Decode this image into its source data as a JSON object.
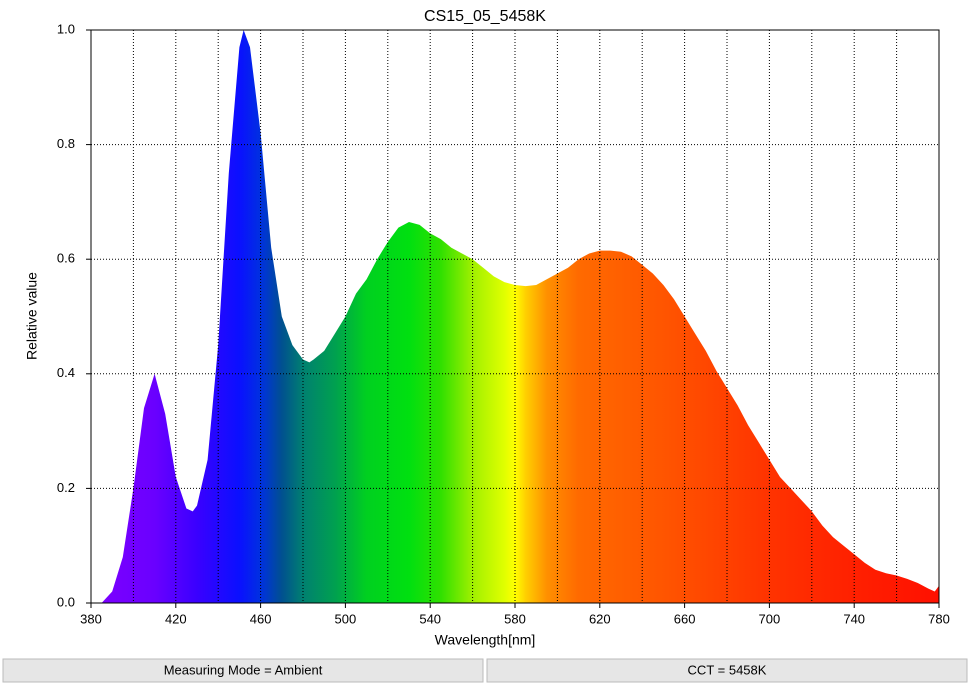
{
  "chart_data": {
    "type": "area",
    "title": "CS15_05_5458K",
    "x_label": "Wavelength[nm]",
    "y_label": "Relative value",
    "x": [
      380,
      385,
      390,
      395,
      400,
      405,
      410,
      415,
      420,
      425,
      428,
      430,
      435,
      440,
      445,
      450,
      452,
      455,
      460,
      465,
      470,
      475,
      480,
      483,
      485,
      490,
      495,
      500,
      505,
      510,
      515,
      520,
      525,
      530,
      535,
      540,
      545,
      550,
      555,
      560,
      565,
      570,
      575,
      580,
      585,
      590,
      595,
      600,
      605,
      610,
      615,
      620,
      625,
      630,
      635,
      640,
      645,
      650,
      655,
      660,
      665,
      670,
      675,
      680,
      685,
      690,
      695,
      700,
      705,
      710,
      715,
      720,
      725,
      730,
      735,
      740,
      745,
      750,
      755,
      760,
      765,
      770,
      775,
      778,
      780
    ],
    "values": [
      0,
      0,
      0.02,
      0.08,
      0.2,
      0.34,
      0.4,
      0.33,
      0.22,
      0.165,
      0.16,
      0.17,
      0.25,
      0.45,
      0.75,
      0.97,
      1.0,
      0.97,
      0.82,
      0.62,
      0.5,
      0.45,
      0.425,
      0.42,
      0.425,
      0.44,
      0.47,
      0.5,
      0.54,
      0.565,
      0.6,
      0.63,
      0.655,
      0.665,
      0.66,
      0.645,
      0.635,
      0.62,
      0.61,
      0.6,
      0.585,
      0.57,
      0.56,
      0.555,
      0.553,
      0.555,
      0.565,
      0.575,
      0.585,
      0.6,
      0.61,
      0.615,
      0.615,
      0.613,
      0.605,
      0.59,
      0.575,
      0.555,
      0.53,
      0.5,
      0.47,
      0.44,
      0.405,
      0.375,
      0.345,
      0.31,
      0.28,
      0.25,
      0.22,
      0.2,
      0.18,
      0.16,
      0.135,
      0.115,
      0.1,
      0.085,
      0.07,
      0.058,
      0.052,
      0.048,
      0.042,
      0.035,
      0.025,
      0.02,
      0.03
    ],
    "gradient": [
      {
        "x": 380,
        "color": "#7f00ff"
      },
      {
        "x": 410,
        "color": "#6a00ff"
      },
      {
        "x": 430,
        "color": "#3a00ff"
      },
      {
        "x": 450,
        "color": "#0a10ff"
      },
      {
        "x": 460,
        "color": "#0030e0"
      },
      {
        "x": 470,
        "color": "#005090"
      },
      {
        "x": 480,
        "color": "#008070"
      },
      {
        "x": 495,
        "color": "#00a050"
      },
      {
        "x": 510,
        "color": "#00d020"
      },
      {
        "x": 530,
        "color": "#00e010"
      },
      {
        "x": 545,
        "color": "#30e000"
      },
      {
        "x": 560,
        "color": "#a0f000"
      },
      {
        "x": 575,
        "color": "#e0ff00"
      },
      {
        "x": 580,
        "color": "#ffff00"
      },
      {
        "x": 585,
        "color": "#ffd000"
      },
      {
        "x": 595,
        "color": "#ff9000"
      },
      {
        "x": 610,
        "color": "#ff6a00"
      },
      {
        "x": 650,
        "color": "#ff5500"
      },
      {
        "x": 700,
        "color": "#ff3300"
      },
      {
        "x": 740,
        "color": "#ff2000"
      },
      {
        "x": 780,
        "color": "#ff1000"
      }
    ],
    "xlim": [
      380,
      780
    ],
    "xticks": [
      380,
      420,
      460,
      500,
      540,
      580,
      620,
      660,
      700,
      740,
      780
    ],
    "xminorgrid": [
      400,
      440,
      480,
      520,
      560,
      600,
      640,
      680,
      720,
      760
    ],
    "ylim": [
      0,
      1
    ],
    "yticks": [
      {
        "value": 0,
        "label": "0.0"
      },
      {
        "value": 0.2,
        "label": "0.2"
      },
      {
        "value": 0.4,
        "label": "0.4"
      },
      {
        "value": 0.6,
        "label": "0.6"
      },
      {
        "value": 0.8,
        "label": "0.8"
      },
      {
        "value": 1,
        "label": "1.0"
      }
    ],
    "grid": true
  },
  "status_bar": [
    "Measuring Mode = Ambient",
    "CCT = 5458K"
  ]
}
